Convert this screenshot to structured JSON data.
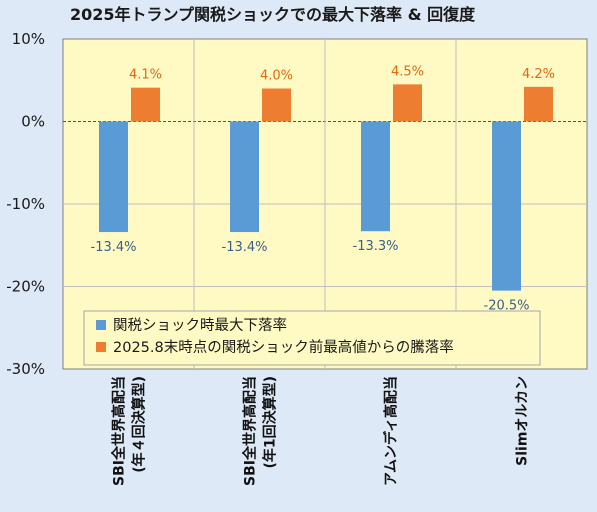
{
  "chart_data": {
    "type": "bar",
    "title": "2025年トランプ関税ショックでの最大下落率 & 回復度",
    "categories": [
      [
        "SBI全世界高配当",
        "(年４回決算型)"
      ],
      [
        "SBI全世界高配当",
        "(年1回決算型)"
      ],
      [
        "アムンディ高配当"
      ],
      [
        "Slimオルカン"
      ]
    ],
    "series": [
      {
        "name": "関税ショック時最大下落率",
        "color": "#5b9bd5",
        "values": [
          -13.4,
          -13.4,
          -13.3,
          -20.5
        ],
        "labels": [
          "-13.4%",
          "-13.4%",
          "-13.3%",
          "-20.5%"
        ]
      },
      {
        "name": "2025.8末時点の関税ショック前最高値からの騰落率",
        "color": "#ed7d31",
        "values": [
          4.1,
          4.0,
          4.5,
          4.2
        ],
        "labels": [
          "4.1%",
          "4.0%",
          "4.5%",
          "4.2%"
        ]
      }
    ],
    "ylim": [
      -30,
      10
    ],
    "yticks": [
      10,
      0,
      -10,
      -20,
      -30
    ],
    "ytick_labels": [
      "10%",
      "0%",
      "-10%",
      "-20%",
      "-30%"
    ],
    "grid": true,
    "legend_position": "bottom-left",
    "plot_background": "#fff9c4",
    "background": "#dde9f6"
  }
}
